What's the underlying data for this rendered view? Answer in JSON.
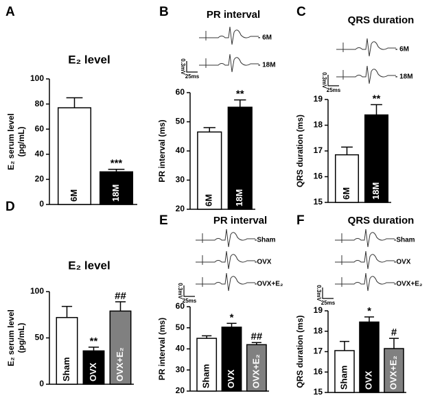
{
  "chart_data": [
    {
      "type": "bar",
      "panel": "A",
      "title": "E₂ level",
      "ylabel": [
        "E₂ serum level",
        "(pg/mL)"
      ],
      "categories": [
        "6M",
        "18M"
      ],
      "values": [
        77,
        26
      ],
      "errors": [
        8,
        2
      ],
      "colors": [
        "#ffffff",
        "#000000"
      ],
      "significance": [
        null,
        "***"
      ],
      "ylim": [
        0,
        100
      ],
      "yticks": [
        0,
        20,
        40,
        60,
        80,
        100
      ]
    },
    {
      "type": "bar",
      "panel": "B",
      "title": "PR interval",
      "ylabel": [
        "PR interval (ms)"
      ],
      "categories": [
        "6M",
        "18M"
      ],
      "values": [
        46.5,
        55
      ],
      "errors": [
        1.5,
        2.5
      ],
      "colors": [
        "#ffffff",
        "#000000"
      ],
      "significance": [
        null,
        "**"
      ],
      "ylim": [
        20,
        60
      ],
      "yticks": [
        20,
        30,
        40,
        50,
        60
      ],
      "traces": [
        "- 6M",
        "- 18M"
      ],
      "scale_labels": [
        "0.3mV",
        "25ms"
      ]
    },
    {
      "type": "bar",
      "panel": "C",
      "title": "QRS duration",
      "ylabel": [
        "QRS duration (ms)"
      ],
      "categories": [
        "6M",
        "18M"
      ],
      "values": [
        16.85,
        18.4
      ],
      "errors": [
        0.3,
        0.4
      ],
      "colors": [
        "#ffffff",
        "#000000"
      ],
      "significance": [
        null,
        "**"
      ],
      "ylim": [
        15,
        19
      ],
      "yticks": [
        15,
        16,
        17,
        18,
        19
      ],
      "traces": [
        "- 6M",
        "- 18M"
      ],
      "scale_labels": [
        "0.3mV",
        "25ms"
      ]
    },
    {
      "type": "bar",
      "panel": "D",
      "title": "E₂ level",
      "ylabel": [
        "E₂ serum level",
        "(pg/mL)"
      ],
      "categories": [
        "Sham",
        "OVX",
        "OVX+E₂"
      ],
      "values": [
        72,
        36,
        79
      ],
      "errors": [
        12,
        4,
        10
      ],
      "colors": [
        "#ffffff",
        "#000000",
        "#808080"
      ],
      "significance": [
        null,
        "**",
        "##"
      ],
      "ylim": [
        0,
        100
      ],
      "yticks": [
        0,
        50,
        100
      ]
    },
    {
      "type": "bar",
      "panel": "E",
      "title": "PR interval",
      "ylabel": [
        "PR interval (ms)"
      ],
      "categories": [
        "Sham",
        "OVX",
        "OVX+E₂"
      ],
      "values": [
        45,
        50.3,
        42
      ],
      "errors": [
        1.2,
        1.8,
        1
      ],
      "colors": [
        "#ffffff",
        "#000000",
        "#808080"
      ],
      "significance": [
        null,
        "*",
        "##"
      ],
      "ylim": [
        20,
        60
      ],
      "yticks": [
        20,
        30,
        40,
        50,
        60
      ],
      "traces": [
        "-Sham",
        "-OVX",
        "-OVX+E₂"
      ],
      "scale_labels": [
        "0.3mV",
        "25ms"
      ]
    },
    {
      "type": "bar",
      "panel": "F",
      "title": "QRS duration",
      "ylabel": [
        "QRS duration (ms)"
      ],
      "categories": [
        "Sham",
        "OVX",
        "OVX+E₂"
      ],
      "values": [
        17.05,
        18.45,
        17.15
      ],
      "errors": [
        0.45,
        0.25,
        0.5
      ],
      "colors": [
        "#ffffff",
        "#000000",
        "#808080"
      ],
      "significance": [
        null,
        "*",
        "#"
      ],
      "ylim": [
        15,
        19
      ],
      "yticks": [
        15,
        16,
        17,
        18,
        19
      ],
      "traces": [
        "-Sham",
        "-OVX",
        "-OVX+E₂"
      ],
      "scale_labels": [
        "0.3mV",
        "25ms"
      ]
    }
  ]
}
